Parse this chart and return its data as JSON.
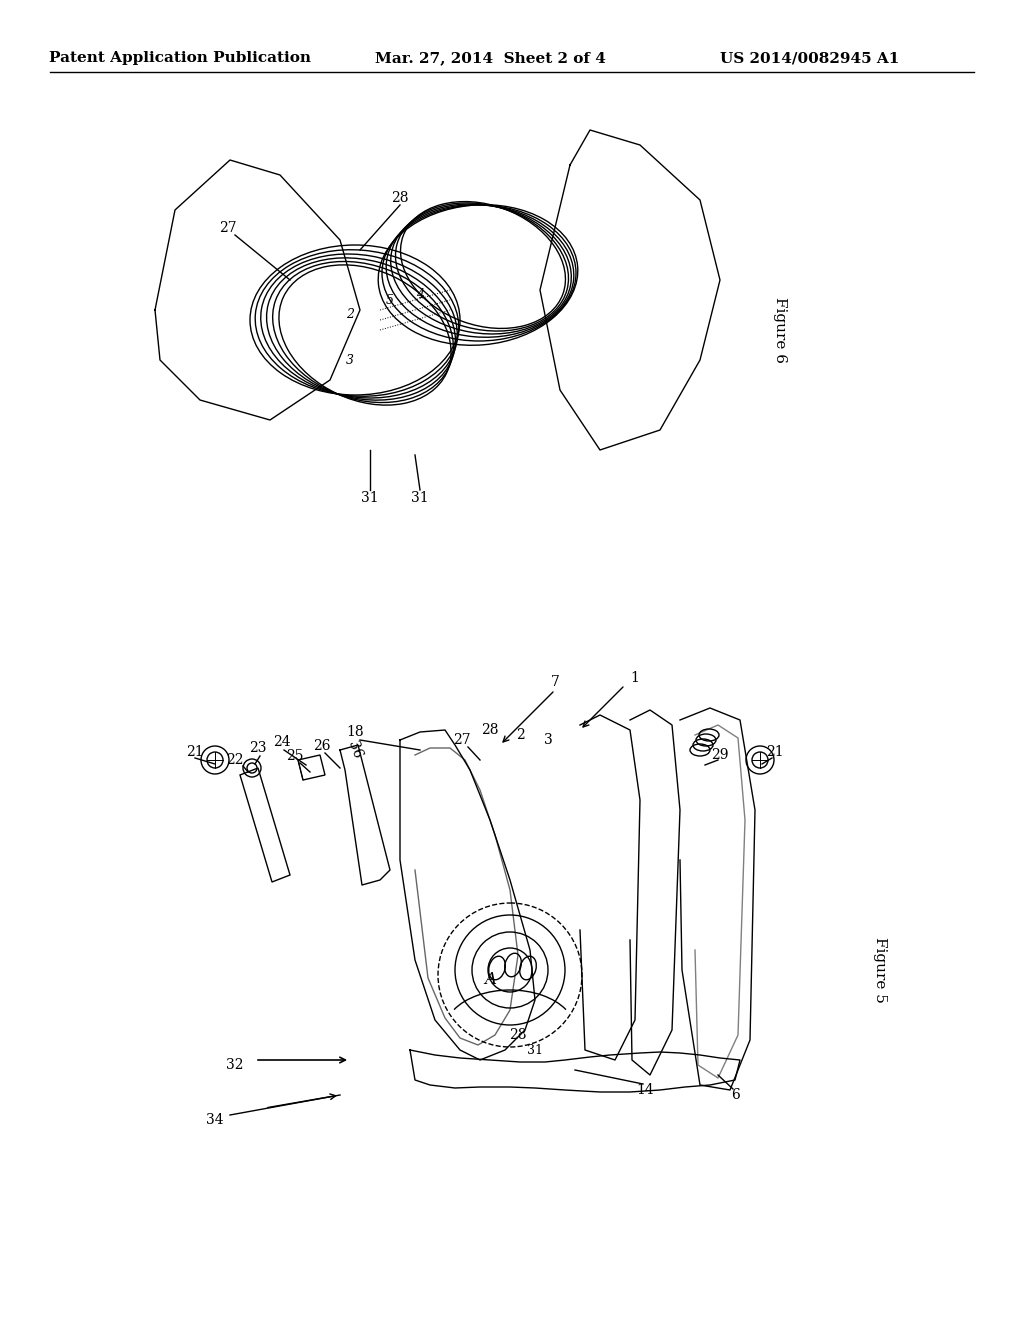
{
  "title": "Patent Application Publication  Mar. 27, 2014  Sheet 2 of 4     US 2014/0082945 A1",
  "title_left": "Patent Application Publication",
  "title_mid": "Mar. 27, 2014  Sheet 2 of 4",
  "title_right": "US 2014/0082945 A1",
  "fig6_label": "Figure 6",
  "fig5_label": "Figure 5",
  "bg_color": "#ffffff",
  "line_color": "#000000",
  "line_width": 1.0
}
